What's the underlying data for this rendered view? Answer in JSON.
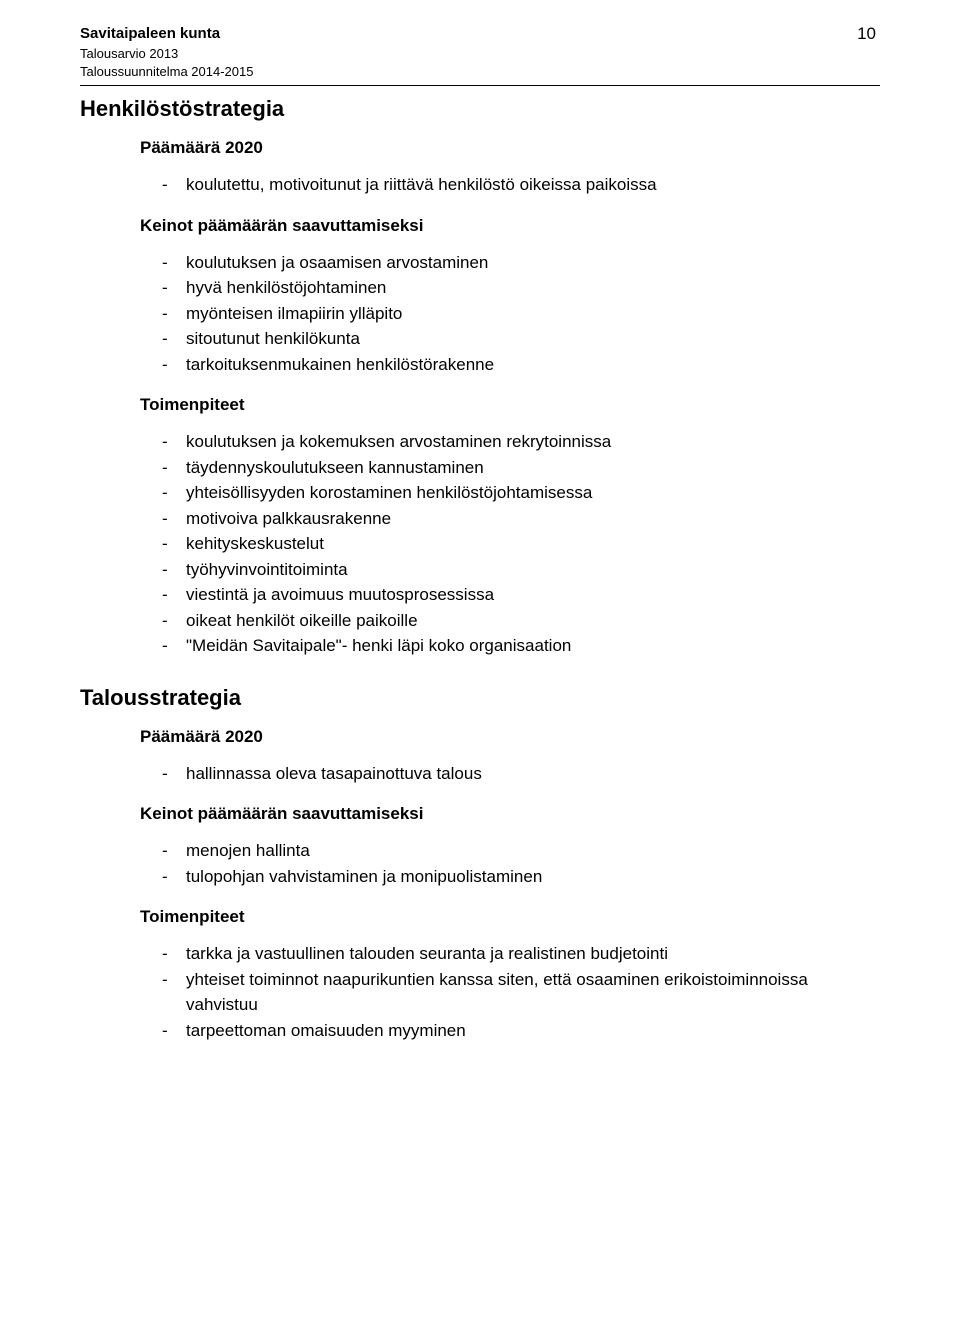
{
  "header": {
    "title": "Savitaipaleen kunta",
    "sub1": "Talousarvio 2013",
    "sub2": "Taloussuunnitelma 2014-2015",
    "page_number": "10"
  },
  "colors": {
    "text": "#000000",
    "background": "#ffffff",
    "rule": "#000000"
  },
  "typography": {
    "body_font": "Arial",
    "section_title_pt": 22,
    "sub_heading_pt": 17,
    "body_pt": 17,
    "header_title_pt": 15,
    "header_sub_pt": 13
  },
  "sections": [
    {
      "title": "Henkilöstöstrategia",
      "blocks": [
        {
          "heading": "Päämäärä 2020",
          "items": [
            "koulutettu, motivoitunut ja riittävä henkilöstö oikeissa paikoissa"
          ]
        },
        {
          "heading": "Keinot päämäärän saavuttamiseksi",
          "items": [
            "koulutuksen ja osaamisen arvostaminen",
            "hyvä henkilöstöjohtaminen",
            "myönteisen ilmapiirin ylläpito",
            "sitoutunut henkilökunta",
            "tarkoituksenmukainen henkilöstörakenne"
          ]
        },
        {
          "heading": "Toimenpiteet",
          "items": [
            "koulutuksen ja kokemuksen arvostaminen rekrytoinnissa",
            "täydennyskoulutukseen kannustaminen",
            "yhteisöllisyyden korostaminen henkilöstöjohtamisessa",
            "motivoiva palkkausrakenne",
            "kehityskeskustelut",
            "työhyvinvointitoiminta",
            "viestintä ja avoimuus muutosprosessissa",
            "oikeat henkilöt oikeille paikoille",
            "\"Meidän Savitaipale\"- henki läpi koko organisaation"
          ]
        }
      ]
    },
    {
      "title": "Talousstrategia",
      "blocks": [
        {
          "heading": "Päämäärä 2020",
          "items": [
            "hallinnassa oleva tasapainottuva talous"
          ]
        },
        {
          "heading": "Keinot päämäärän saavuttamiseksi",
          "items": [
            "menojen hallinta",
            "tulopohjan vahvistaminen ja monipuolistaminen"
          ]
        },
        {
          "heading": "Toimenpiteet",
          "items": [
            "tarkka ja vastuullinen talouden seuranta ja realistinen budjetointi",
            "yhteiset toiminnot naapurikuntien kanssa siten, että osaaminen erikoistoiminnoissa vahvistuu",
            "tarpeettoman omaisuuden myyminen"
          ]
        }
      ]
    }
  ]
}
